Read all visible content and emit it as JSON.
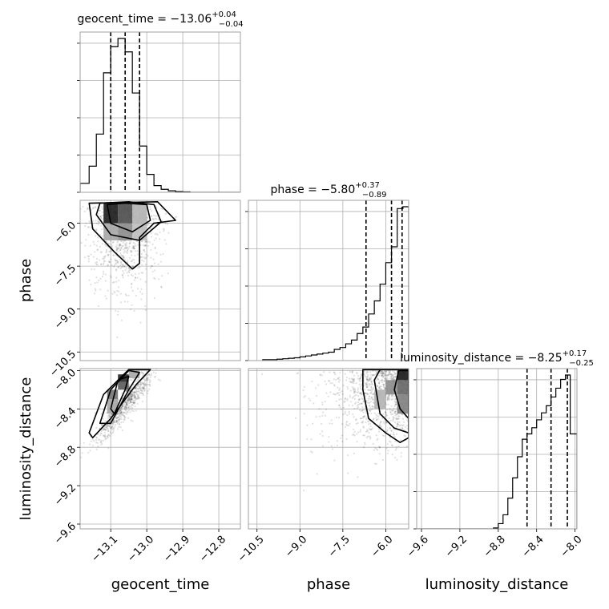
{
  "chart_data": {
    "type": "corner",
    "parameters": [
      "geocent_time",
      "phase",
      "luminosity_distance"
    ],
    "titles": [
      {
        "param": "geocent_time",
        "text": "geocent_time = −13.06",
        "sup": "+0.04",
        "sub": "−0.04"
      },
      {
        "param": "phase",
        "text": "phase = −5.80",
        "sup": "+0.37",
        "sub": "−0.89"
      },
      {
        "param": "luminosity_distance",
        "text": "luminosity_distance = −8.25",
        "sup": "+0.17",
        "sub": "−0.25"
      }
    ],
    "ranges": {
      "geocent_time": [
        -13.185,
        -12.74
      ],
      "phase": [
        -10.8,
        -5.2
      ],
      "luminosity_distance": [
        -9.65,
        -7.98
      ]
    },
    "ticks": {
      "geocent_time": {
        "values": [
          -13.1,
          -13.0,
          -12.9,
          -12.8
        ],
        "labels": [
          "−13.1",
          "−13.0",
          "−12.9",
          "−12.8"
        ]
      },
      "phase": {
        "values": [
          -10.5,
          -9.0,
          -7.5,
          -6.0
        ],
        "labels": [
          "−10.5",
          "−9.0",
          "−7.5",
          "−6.0"
        ]
      },
      "luminosity_distance": {
        "values": [
          -9.6,
          -9.2,
          -8.8,
          -8.4,
          -8.0
        ],
        "labels": [
          "−9.6",
          "−9.2",
          "−8.8",
          "−8.4",
          "−8.0"
        ]
      }
    },
    "quantiles": {
      "geocent_time": [
        -13.1,
        -13.06,
        -13.02
      ],
      "phase": [
        -6.69,
        -5.8,
        -5.43
      ],
      "luminosity_distance": [
        -8.5,
        -8.25,
        -8.08
      ]
    },
    "histograms": {
      "geocent_time": {
        "edges": [
          -13.185,
          -13.16,
          -13.14,
          -13.12,
          -13.1,
          -13.08,
          -13.06,
          -13.04,
          -13.02,
          -13.0,
          -12.98,
          -12.96,
          -12.94,
          -12.92,
          -12.9,
          -12.88,
          -12.74
        ],
        "counts": [
          0.12,
          0.35,
          0.78,
          1.6,
          1.95,
          2.06,
          1.88,
          1.33,
          0.62,
          0.24,
          0.09,
          0.04,
          0.02,
          0.01,
          0.005,
          0
        ]
      },
      "phase": {
        "edges": [
          -10.3,
          -10.0,
          -9.8,
          -9.6,
          -9.4,
          -9.2,
          -9.0,
          -8.8,
          -8.6,
          -8.4,
          -8.2,
          -8.0,
          -7.8,
          -7.6,
          -7.4,
          -7.2,
          -7.0,
          -6.8,
          -6.6,
          -6.4,
          -6.2,
          -6.0,
          -5.8,
          -5.6,
          -5.4,
          -5.2
        ],
        "counts": [
          0.01,
          0.01,
          0.015,
          0.02,
          0.025,
          0.03,
          0.04,
          0.05,
          0.06,
          0.07,
          0.08,
          0.09,
          0.12,
          0.14,
          0.18,
          0.22,
          0.29,
          0.36,
          0.5,
          0.64,
          0.82,
          1.05,
          1.22,
          1.63,
          1.65
        ]
      },
      "luminosity_distance": {
        "edges": [
          -9.65,
          -8.85,
          -8.8,
          -8.75,
          -8.7,
          -8.65,
          -8.6,
          -8.55,
          -8.5,
          -8.45,
          -8.4,
          -8.35,
          -8.3,
          -8.25,
          -8.2,
          -8.15,
          -8.1,
          -8.05,
          -7.98
        ],
        "counts": [
          0,
          0.01,
          0.06,
          0.16,
          0.35,
          0.58,
          0.82,
          1.02,
          1.08,
          1.15,
          1.24,
          1.32,
          1.4,
          1.5,
          1.6,
          1.7,
          1.75,
          1.08
        ]
      }
    },
    "pairs": [
      {
        "x": "geocent_time",
        "y": "phase",
        "scatter": {
          "x_mean": -13.03,
          "x_sd": 0.045,
          "y_mean": -7.3,
          "y_sd": 1.2,
          "n": 900
        },
        "cells": [
          {
            "x0": -13.12,
            "x1": -13.08,
            "y0": -6.0,
            "y1": -5.3,
            "v": 0.9
          },
          {
            "x0": -13.08,
            "x1": -13.04,
            "y0": -6.0,
            "y1": -5.3,
            "v": 0.7
          },
          {
            "x0": -13.12,
            "x1": -13.08,
            "y0": -6.6,
            "y1": -6.0,
            "v": 0.35
          },
          {
            "x0": -13.08,
            "x1": -13.04,
            "y0": -6.6,
            "y1": -6.0,
            "v": 0.45
          },
          {
            "x0": -13.04,
            "x1": -13.0,
            "y0": -6.6,
            "y1": -6.0,
            "v": 0.25
          },
          {
            "x0": -13.04,
            "x1": -13.0,
            "y0": -6.0,
            "y1": -5.3,
            "v": 0.3
          }
        ],
        "contours": [
          [
            [
              -13.11,
              -5.35
            ],
            [
              -13.06,
              -5.3
            ],
            [
              -13.0,
              -5.35
            ],
            [
              -12.99,
              -5.9
            ],
            [
              -13.04,
              -6.3
            ],
            [
              -13.1,
              -6.0
            ]
          ],
          [
            [
              -13.13,
              -5.3
            ],
            [
              -13.05,
              -5.25
            ],
            [
              -12.98,
              -5.35
            ],
            [
              -12.96,
              -5.95
            ],
            [
              -13.02,
              -6.6
            ],
            [
              -13.1,
              -6.4
            ],
            [
              -13.14,
              -5.7
            ]
          ],
          [
            [
              -13.16,
              -5.3
            ],
            [
              -12.97,
              -5.25
            ],
            [
              -12.92,
              -5.9
            ],
            [
              -12.98,
              -6.0
            ],
            [
              -13.02,
              -6.5
            ],
            [
              -13.02,
              -7.4
            ],
            [
              -13.04,
              -7.6
            ],
            [
              -13.09,
              -7.0
            ],
            [
              -13.15,
              -6.2
            ]
          ]
        ]
      },
      {
        "x": "geocent_time",
        "y": "luminosity_distance",
        "scatter": {
          "x_mean": -13.06,
          "x_sd": 0.04,
          "y_mean": -8.38,
          "y_sd": 0.22,
          "n": 700
        },
        "cells": [
          {
            "x0": -13.08,
            "x1": -13.05,
            "y0": -8.12,
            "y1": -8.04,
            "v": 0.85
          },
          {
            "x0": -13.08,
            "x1": -13.05,
            "y0": -8.2,
            "y1": -8.12,
            "v": 0.65
          },
          {
            "x0": -13.11,
            "x1": -13.08,
            "y0": -8.3,
            "y1": -8.2,
            "v": 0.55
          },
          {
            "x0": -13.11,
            "x1": -13.08,
            "y0": -8.45,
            "y1": -8.3,
            "v": 0.35
          },
          {
            "x0": -13.05,
            "x1": -13.02,
            "y0": -8.08,
            "y1": -7.98,
            "v": 0.35
          }
        ],
        "contours": [
          [
            [
              -13.1,
              -8.4
            ],
            [
              -13.08,
              -8.1
            ],
            [
              -13.05,
              -8.06
            ],
            [
              -13.06,
              -8.2
            ],
            [
              -13.09,
              -8.45
            ]
          ],
          [
            [
              -13.13,
              -8.55
            ],
            [
              -13.1,
              -8.2
            ],
            [
              -13.05,
              -8.0
            ],
            [
              -13.02,
              -8.02
            ],
            [
              -13.05,
              -8.2
            ],
            [
              -13.1,
              -8.55
            ]
          ],
          [
            [
              -13.16,
              -8.65
            ],
            [
              -13.12,
              -8.25
            ],
            [
              -13.05,
              -7.99
            ],
            [
              -12.99,
              -7.99
            ],
            [
              -13.03,
              -8.15
            ],
            [
              -13.1,
              -8.5
            ],
            [
              -13.15,
              -8.7
            ]
          ]
        ]
      },
      {
        "x": "phase",
        "y": "luminosity_distance",
        "scatter": {
          "x_mean": -7.0,
          "x_sd": 1.1,
          "y_mean": -8.28,
          "y_sd": 0.18,
          "n": 1100
        },
        "cells": [
          {
            "x0": -5.6,
            "x1": -5.2,
            "y0": -8.1,
            "y1": -8.0,
            "v": 0.9
          },
          {
            "x0": -5.6,
            "x1": -5.2,
            "y0": -8.25,
            "y1": -8.1,
            "v": 0.6
          },
          {
            "x0": -6.0,
            "x1": -5.6,
            "y0": -8.25,
            "y1": -8.1,
            "v": 0.45
          },
          {
            "x0": -5.6,
            "x1": -5.2,
            "y0": -8.45,
            "y1": -8.25,
            "v": 0.5
          },
          {
            "x0": -6.4,
            "x1": -6.0,
            "y0": -8.4,
            "y1": -8.2,
            "v": 0.3
          }
        ],
        "contours": [
          [
            [
              -5.55,
              -8.0
            ],
            [
              -5.2,
              -8.0
            ],
            [
              -5.2,
              -8.5
            ],
            [
              -5.5,
              -8.4
            ],
            [
              -5.7,
              -8.2
            ]
          ],
          [
            [
              -6.2,
              -7.99
            ],
            [
              -5.2,
              -7.99
            ],
            [
              -5.2,
              -8.65
            ],
            [
              -5.7,
              -8.6
            ],
            [
              -6.2,
              -8.45
            ],
            [
              -6.4,
              -8.1
            ]
          ],
          [
            [
              -6.8,
              -7.99
            ],
            [
              -5.2,
              -7.99
            ],
            [
              -5.2,
              -8.7
            ],
            [
              -5.5,
              -8.75
            ],
            [
              -6.0,
              -8.65
            ],
            [
              -6.6,
              -8.5
            ],
            [
              -6.8,
              -8.2
            ]
          ]
        ]
      }
    ],
    "grid": true
  }
}
